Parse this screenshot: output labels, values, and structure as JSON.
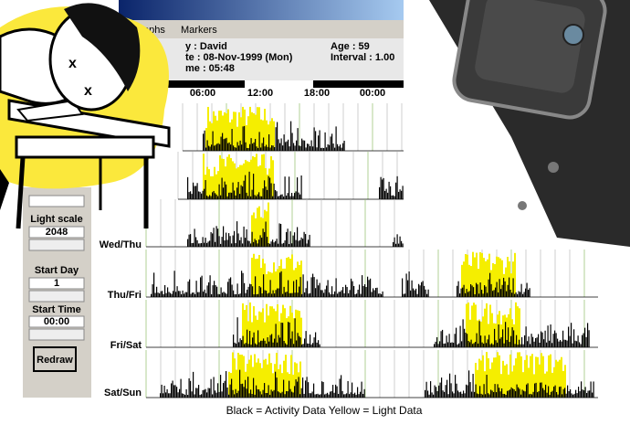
{
  "window": {
    "menu": [
      "aphs",
      "Markers"
    ],
    "info": {
      "name": "y : David",
      "date": "te : 08-Nov-1999 (Mon)",
      "time": "me : 05:48",
      "age": "Age : 59",
      "interval": "Interval  : 1.00"
    },
    "time_axis": [
      "06:00",
      "12:00",
      "18:00",
      "00:00"
    ],
    "controls": {
      "light_scale_label": "Light scale",
      "light_scale_value": "2048",
      "start_day_label": "Start Day",
      "start_day_value": "1",
      "start_time_label": "Start Time",
      "start_time_value": "00:00",
      "redraw": "Redraw"
    },
    "row_labels": [
      "Wed/Thu",
      "Thu/Fri",
      "Fri/Sat",
      "Sat/Sun"
    ]
  },
  "caption": "Black = Activity Data    Yellow = Light Data"
}
